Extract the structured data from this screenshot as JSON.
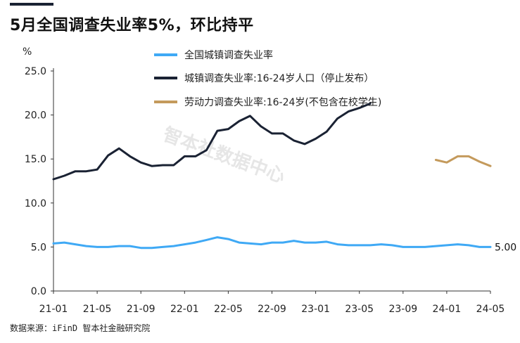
{
  "title": "5月全国调查失业率5%，环比持平",
  "source": "数据来源：iFinD 智本社金融研究院",
  "watermark": "智本社数据中心",
  "colors": {
    "total": "#3fa9f5",
    "youth_old": "#1a2233",
    "youth_new": "#c49a5c"
  },
  "chart_data": {
    "type": "line",
    "title": "5月全国调查失业率5%，环比持平",
    "xlabel": "",
    "ylabel": "%",
    "ylim": [
      0,
      25
    ],
    "yticks": [
      "0.0",
      "5.0",
      "10.0",
      "15.0",
      "20.0",
      "25.0"
    ],
    "grid": false,
    "legend_position": "top-center",
    "x_ticks": [
      "21-01",
      "21-05",
      "21-09",
      "22-01",
      "22-05",
      "22-09",
      "23-01",
      "23-05",
      "23-09",
      "24-01",
      "24-05"
    ],
    "x": [
      "21-01",
      "21-02",
      "21-03",
      "21-04",
      "21-05",
      "21-06",
      "21-07",
      "21-08",
      "21-09",
      "21-10",
      "21-11",
      "21-12",
      "22-01",
      "22-02",
      "22-03",
      "22-04",
      "22-05",
      "22-06",
      "22-07",
      "22-08",
      "22-09",
      "22-10",
      "22-11",
      "22-12",
      "23-01",
      "23-02",
      "23-03",
      "23-04",
      "23-05",
      "23-06",
      "23-07",
      "23-08",
      "23-09",
      "23-10",
      "23-11",
      "23-12",
      "24-01",
      "24-02",
      "24-03",
      "24-04",
      "24-05"
    ],
    "series": [
      {
        "name": "全国城镇调查失业率",
        "color": "#3fa9f5",
        "values": [
          5.4,
          5.5,
          5.3,
          5.1,
          5.0,
          5.0,
          5.1,
          5.1,
          4.9,
          4.9,
          5.0,
          5.1,
          5.3,
          5.5,
          5.8,
          6.1,
          5.9,
          5.5,
          5.4,
          5.3,
          5.5,
          5.5,
          5.7,
          5.5,
          5.5,
          5.6,
          5.3,
          5.2,
          5.2,
          5.2,
          5.3,
          5.2,
          5.0,
          5.0,
          5.0,
          5.1,
          5.2,
          5.3,
          5.2,
          5.0,
          5.0
        ]
      },
      {
        "name": "城镇调查失业率:16-24岁人口（停止发布）",
        "color": "#1a2233",
        "values": [
          12.7,
          13.1,
          13.6,
          13.6,
          13.8,
          15.4,
          16.2,
          15.3,
          14.6,
          14.2,
          14.3,
          14.3,
          15.3,
          15.3,
          16.0,
          18.2,
          18.4,
          19.3,
          19.9,
          18.7,
          17.9,
          17.9,
          17.1,
          16.7,
          17.3,
          18.1,
          19.6,
          20.4,
          20.8,
          21.3,
          null,
          null,
          null,
          null,
          null,
          null,
          null,
          null,
          null,
          null,
          null
        ]
      },
      {
        "name": "劳动力调查失业率:16-24岁(不包含在校学生)",
        "color": "#c49a5c",
        "values": [
          null,
          null,
          null,
          null,
          null,
          null,
          null,
          null,
          null,
          null,
          null,
          null,
          null,
          null,
          null,
          null,
          null,
          null,
          null,
          null,
          null,
          null,
          null,
          null,
          null,
          null,
          null,
          null,
          null,
          null,
          null,
          null,
          null,
          null,
          null,
          14.9,
          14.6,
          15.3,
          15.3,
          14.7,
          14.2
        ]
      }
    ],
    "annotations": [
      {
        "text": "5.00",
        "series": "全国城镇调查失业率",
        "x": "24-05",
        "y": 5.0
      }
    ]
  }
}
